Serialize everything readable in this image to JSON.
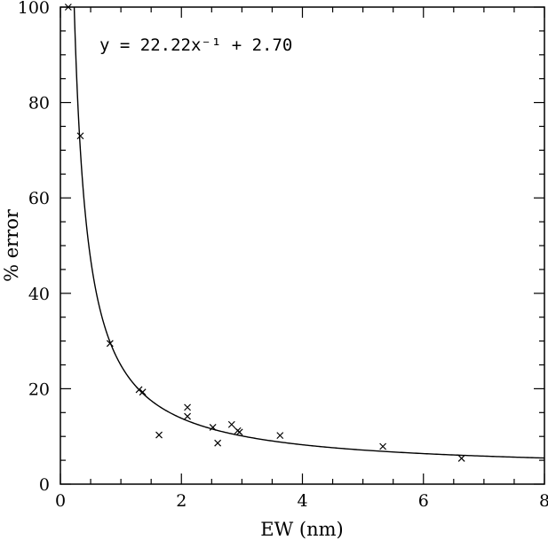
{
  "chart_data": {
    "type": "scatter",
    "xlabel": "EW (nm)",
    "ylabel": "% error",
    "xlim": [
      0,
      8
    ],
    "ylim": [
      0,
      100
    ],
    "x_ticks": [
      0,
      2,
      4,
      6,
      8
    ],
    "y_ticks": [
      0,
      20,
      40,
      60,
      80,
      100
    ],
    "grid": false,
    "equation": "y  =  22.22x⁻¹  +  2.70",
    "fit": {
      "a": 22.22,
      "b": 2.7
    },
    "points": [
      {
        "x": 0.13,
        "y": 100
      },
      {
        "x": 0.33,
        "y": 73
      },
      {
        "x": 0.82,
        "y": 29.5
      },
      {
        "x": 1.3,
        "y": 19.8
      },
      {
        "x": 1.36,
        "y": 19.3
      },
      {
        "x": 1.63,
        "y": 10.3
      },
      {
        "x": 2.1,
        "y": 16.1
      },
      {
        "x": 2.1,
        "y": 14.2
      },
      {
        "x": 2.52,
        "y": 11.9
      },
      {
        "x": 2.6,
        "y": 8.6
      },
      {
        "x": 2.83,
        "y": 12.5
      },
      {
        "x": 2.93,
        "y": 11.2
      },
      {
        "x": 2.96,
        "y": 10.9
      },
      {
        "x": 3.63,
        "y": 10.2
      },
      {
        "x": 5.33,
        "y": 7.9
      },
      {
        "x": 6.63,
        "y": 5.4
      }
    ]
  }
}
